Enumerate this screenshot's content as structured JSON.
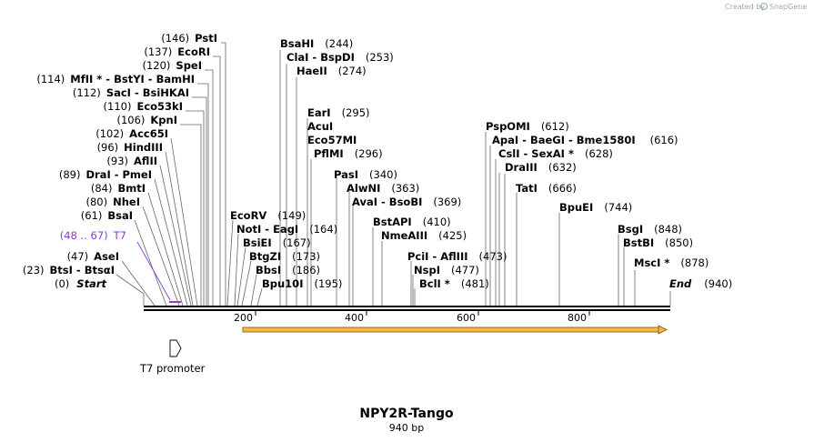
{
  "credit": {
    "text": "Created by",
    "brand": "SnapGene"
  },
  "map": {
    "title": "NPY2R-Tango",
    "length_label": "940 bp",
    "length": 940,
    "ticks": [
      "200",
      "400",
      "600",
      "800"
    ]
  },
  "feature_label": {
    "name": "T7",
    "range": "(48 .. 67)"
  },
  "promoter": {
    "label": "T7 promoter"
  },
  "colors": {
    "line": "#000000",
    "leader": "#666666",
    "primer": "#8e3ad4",
    "orf_fill": "#f5b84a",
    "orf_stroke": "#7a5310",
    "text": "#000000"
  },
  "sites": [
    {
      "pos": "(146)",
      "name": "PstI"
    },
    {
      "pos": "(137)",
      "name": "EcoRI"
    },
    {
      "pos": "(120)",
      "name": "SpeI"
    },
    {
      "pos": "(114)",
      "name": "MfII *  - BstYI  - BamHI"
    },
    {
      "pos": "(112)",
      "name": "SacI  - BsiHKAI"
    },
    {
      "pos": "(110)",
      "name": "Eco53kI"
    },
    {
      "pos": "(106)",
      "name": "KpnI"
    },
    {
      "pos": "(102)",
      "name": "Acc65I"
    },
    {
      "pos": "(96)",
      "name": "HindIII"
    },
    {
      "pos": "(93)",
      "name": "AflII"
    },
    {
      "pos": "(89)",
      "name": "DraI  - PmeI"
    },
    {
      "pos": "(84)",
      "name": "BmtI"
    },
    {
      "pos": "(80)",
      "name": "NheI"
    },
    {
      "pos": "(61)",
      "name": "BsaI"
    },
    {
      "pos": "(47)",
      "name": "AseI"
    },
    {
      "pos": "(23)",
      "name": "BtsI  - BtsαI"
    },
    {
      "pos": "(0)",
      "name": "Start"
    },
    {
      "pos": "(244)",
      "name": "BsaHI"
    },
    {
      "pos": "(253)",
      "name": "ClaI  - BspDI"
    },
    {
      "pos": "(274)",
      "name": "HaeII"
    },
    {
      "pos": "(295)",
      "name": "EarI"
    },
    {
      "pos": "",
      "name": "AcuI"
    },
    {
      "pos": "",
      "name": "Eco57MI"
    },
    {
      "pos": "(296)",
      "name": "PflMI"
    },
    {
      "pos": "(340)",
      "name": "PasI"
    },
    {
      "pos": "(363)",
      "name": "AlwNI"
    },
    {
      "pos": "(369)",
      "name": "AvaI  - BsoBI"
    },
    {
      "pos": "(410)",
      "name": "BstAPI"
    },
    {
      "pos": "(425)",
      "name": "NmeAIII"
    },
    {
      "pos": "(149)",
      "name": "EcoRV"
    },
    {
      "pos": "(164)",
      "name": "NotI  - EagI"
    },
    {
      "pos": "(167)",
      "name": "BsiEI"
    },
    {
      "pos": "(173)",
      "name": "BtgZI"
    },
    {
      "pos": "(186)",
      "name": "BbsI"
    },
    {
      "pos": "(195)",
      "name": "Bpu10I"
    },
    {
      "pos": "(473)",
      "name": "PciI  - AflIII"
    },
    {
      "pos": "(477)",
      "name": "NspI"
    },
    {
      "pos": "(481)",
      "name": "BclI *"
    },
    {
      "pos": "(612)",
      "name": "PspOMI"
    },
    {
      "pos": "(616)",
      "name": "ApaI  - BaeGI  - Bme1580I"
    },
    {
      "pos": "(628)",
      "name": "CslI  - SexAI *"
    },
    {
      "pos": "(632)",
      "name": "DraIII"
    },
    {
      "pos": "(666)",
      "name": "TatI"
    },
    {
      "pos": "(744)",
      "name": "BpuEI"
    },
    {
      "pos": "(848)",
      "name": "BsgI"
    },
    {
      "pos": "(850)",
      "name": "BstBI"
    },
    {
      "pos": "(878)",
      "name": "MscI *"
    },
    {
      "pos": "(940)",
      "name": "End"
    }
  ]
}
